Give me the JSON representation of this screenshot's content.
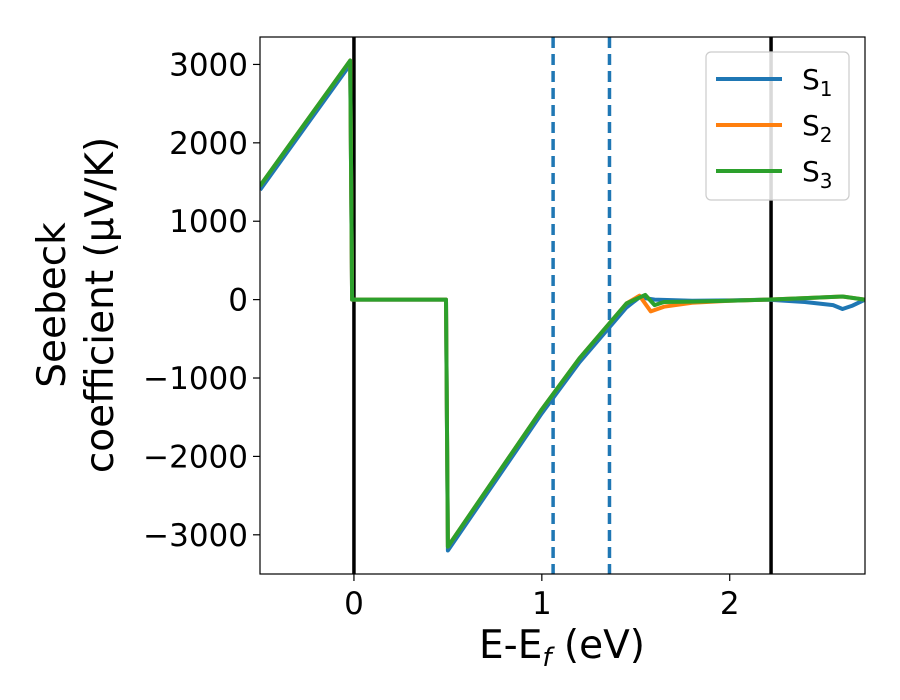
{
  "chart_data": {
    "type": "line",
    "title": "",
    "xlabel": {
      "main": "E-E",
      "sub": "f",
      "tail": " (eV)"
    },
    "ylabel": {
      "line1": "Seebeck",
      "line2": "coefficient  (μV/K)"
    },
    "xlim": [
      -0.5,
      2.72
    ],
    "ylim": [
      -3500,
      3350
    ],
    "xticks": [
      {
        "value": 0,
        "label": "0"
      },
      {
        "value": 1,
        "label": "1"
      },
      {
        "value": 2,
        "label": "2"
      }
    ],
    "yticks": [
      {
        "value": 3000,
        "label": "3000"
      },
      {
        "value": 2000,
        "label": "2000"
      },
      {
        "value": 1000,
        "label": "1000"
      },
      {
        "value": 0,
        "label": "0"
      },
      {
        "value": -1000,
        "label": "−1000"
      },
      {
        "value": -2000,
        "label": "−2000"
      },
      {
        "value": -3000,
        "label": "−3000"
      }
    ],
    "grid": false,
    "legend_position": "top-right",
    "series": [
      {
        "name": "S",
        "sub": "1",
        "color": "#1f77b4",
        "points": [
          [
            -0.5,
            1400
          ],
          [
            -0.02,
            3000
          ],
          [
            -0.01,
            0
          ],
          [
            0.49,
            0
          ],
          [
            0.5,
            -3200
          ],
          [
            1.0,
            -1450
          ],
          [
            1.2,
            -800
          ],
          [
            1.45,
            -100
          ],
          [
            1.52,
            30
          ],
          [
            1.6,
            0
          ],
          [
            1.8,
            -15
          ],
          [
            2.0,
            -10
          ],
          [
            2.2,
            0
          ],
          [
            2.4,
            -30
          ],
          [
            2.55,
            -70
          ],
          [
            2.6,
            -120
          ],
          [
            2.65,
            -80
          ],
          [
            2.72,
            0
          ]
        ]
      },
      {
        "name": "S",
        "sub": "2",
        "color": "#ff7f0e",
        "points": [
          [
            -0.5,
            1450
          ],
          [
            -0.02,
            3050
          ],
          [
            -0.01,
            0
          ],
          [
            0.49,
            0
          ],
          [
            0.5,
            -3150
          ],
          [
            1.0,
            -1400
          ],
          [
            1.2,
            -750
          ],
          [
            1.45,
            -50
          ],
          [
            1.52,
            50
          ],
          [
            1.58,
            -150
          ],
          [
            1.65,
            -90
          ],
          [
            1.8,
            -40
          ],
          [
            2.0,
            -15
          ],
          [
            2.2,
            0
          ],
          [
            2.4,
            20
          ],
          [
            2.6,
            40
          ],
          [
            2.72,
            0
          ]
        ]
      },
      {
        "name": "S",
        "sub": "3",
        "color": "#2ca02c",
        "points": [
          [
            -0.5,
            1450
          ],
          [
            -0.02,
            3050
          ],
          [
            -0.01,
            0
          ],
          [
            0.49,
            0
          ],
          [
            0.5,
            -3150
          ],
          [
            1.0,
            -1400
          ],
          [
            1.2,
            -750
          ],
          [
            1.45,
            -50
          ],
          [
            1.55,
            60
          ],
          [
            1.6,
            -70
          ],
          [
            1.65,
            -30
          ],
          [
            1.8,
            -25
          ],
          [
            2.0,
            -15
          ],
          [
            2.2,
            0
          ],
          [
            2.4,
            20
          ],
          [
            2.6,
            40
          ],
          [
            2.72,
            0
          ]
        ]
      }
    ],
    "vertical_lines": [
      {
        "x": 0.0,
        "style": "solid",
        "color": "#000000"
      },
      {
        "x": 2.22,
        "style": "solid",
        "color": "#000000"
      },
      {
        "x": 1.06,
        "style": "dashed",
        "color": "#1f77b4"
      },
      {
        "x": 1.36,
        "style": "dashed",
        "color": "#1f77b4"
      }
    ]
  }
}
